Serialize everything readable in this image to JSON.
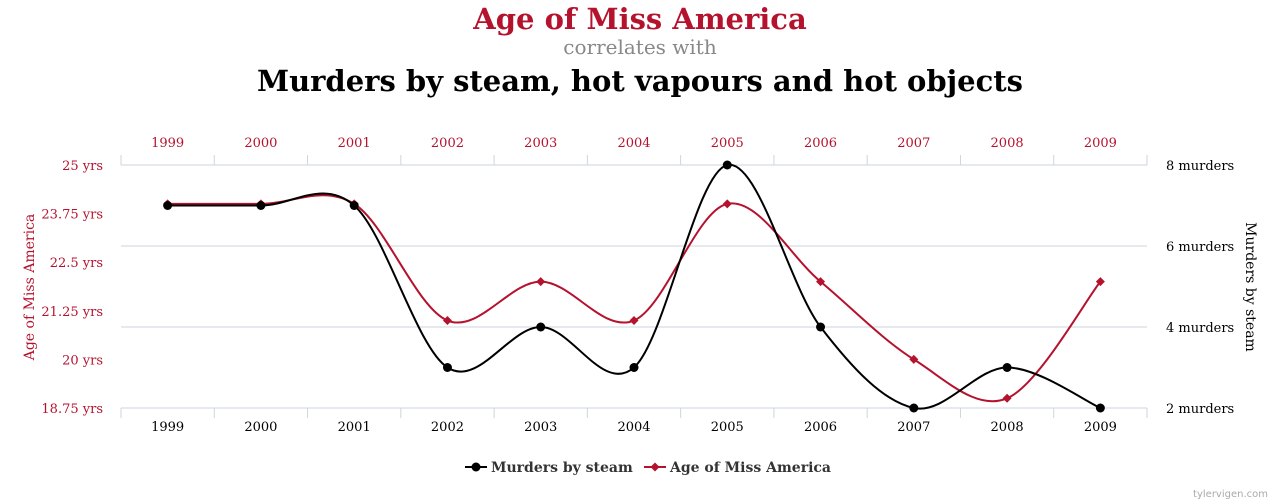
{
  "colors": {
    "red": "#b5122e",
    "black": "#000000",
    "gray": "#888888",
    "grid": "#ccd6df",
    "credit": "#aaaaaa"
  },
  "header": {
    "title": "Age of Miss America",
    "subtitle": "correlates with",
    "title2": "Murders by steam, hot vapours and hot objects"
  },
  "credit": "tylervigen.com",
  "chart_data": {
    "type": "line",
    "categories": [
      "1999",
      "2000",
      "2001",
      "2002",
      "2003",
      "2004",
      "2005",
      "2006",
      "2007",
      "2008",
      "2009"
    ],
    "left_axis": {
      "label": "Age of Miss America",
      "range": [
        18.75,
        25
      ],
      "ticks": [
        "18.75 yrs",
        "20 yrs",
        "21.25 yrs",
        "22.5 yrs",
        "23.75 yrs",
        "25 yrs"
      ],
      "tick_values": [
        18.75,
        20,
        21.25,
        22.5,
        23.75,
        25
      ]
    },
    "right_axis": {
      "label": "Murders by steam",
      "range": [
        2,
        8
      ],
      "ticks": [
        "2 murders",
        "4 murders",
        "6 murders",
        "8 murders"
      ],
      "tick_values": [
        2,
        4,
        6,
        8
      ]
    },
    "series": [
      {
        "name": "Murders by steam",
        "axis": "right",
        "color": "#000000",
        "marker": "circle",
        "values": [
          7,
          7,
          7,
          3,
          4,
          3,
          8,
          4,
          2,
          3,
          2
        ]
      },
      {
        "name": "Age of Miss America",
        "axis": "left",
        "color": "#b5122e",
        "marker": "diamond",
        "values": [
          24,
          24,
          24,
          21,
          22,
          21,
          24,
          22,
          20,
          19,
          22
        ]
      }
    ],
    "grid": true,
    "legend_position": "bottom-center"
  }
}
